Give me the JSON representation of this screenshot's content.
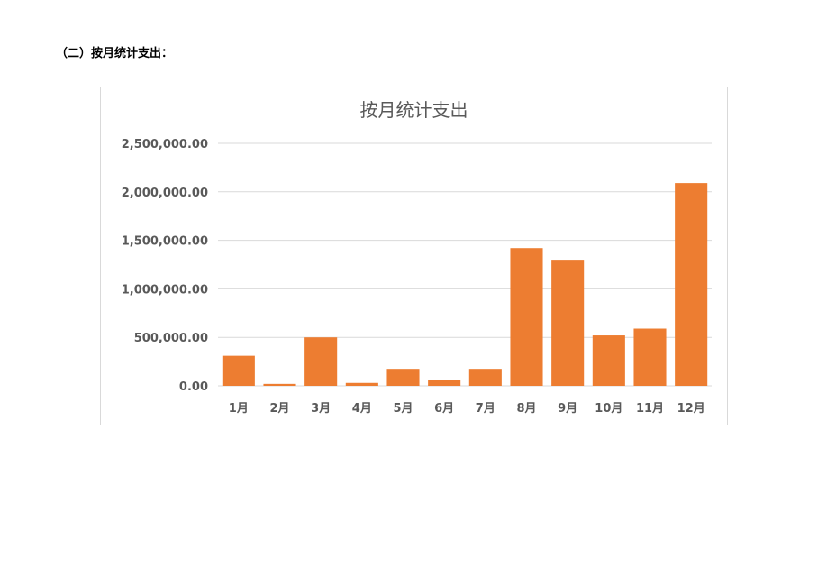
{
  "page": {
    "heading": "（二）按月统计支出："
  },
  "colors": {
    "bar": "#ED7D31",
    "gridline": "#d9d9d9",
    "axis_text": "#595959",
    "frame": "#d9d9d9"
  },
  "chart_data": {
    "type": "bar",
    "title": "按月统计支出",
    "xlabel": "",
    "ylabel": "",
    "categories": [
      "1月",
      "2月",
      "3月",
      "4月",
      "5月",
      "6月",
      "7月",
      "8月",
      "9月",
      "10月",
      "11月",
      "12月"
    ],
    "values": [
      310000,
      20000,
      500000,
      30000,
      175000,
      60000,
      175000,
      1420000,
      1300000,
      520000,
      590000,
      2090000
    ],
    "ylim": [
      0,
      2500000
    ],
    "yticks": [
      0,
      500000,
      1000000,
      1500000,
      2000000,
      2500000
    ],
    "ytick_labels": [
      "0.00",
      "500,000.00",
      "1,000,000.00",
      "1,500,000.00",
      "2,000,000.00",
      "2,500,000.00"
    ],
    "grid": true,
    "legend": "none"
  }
}
